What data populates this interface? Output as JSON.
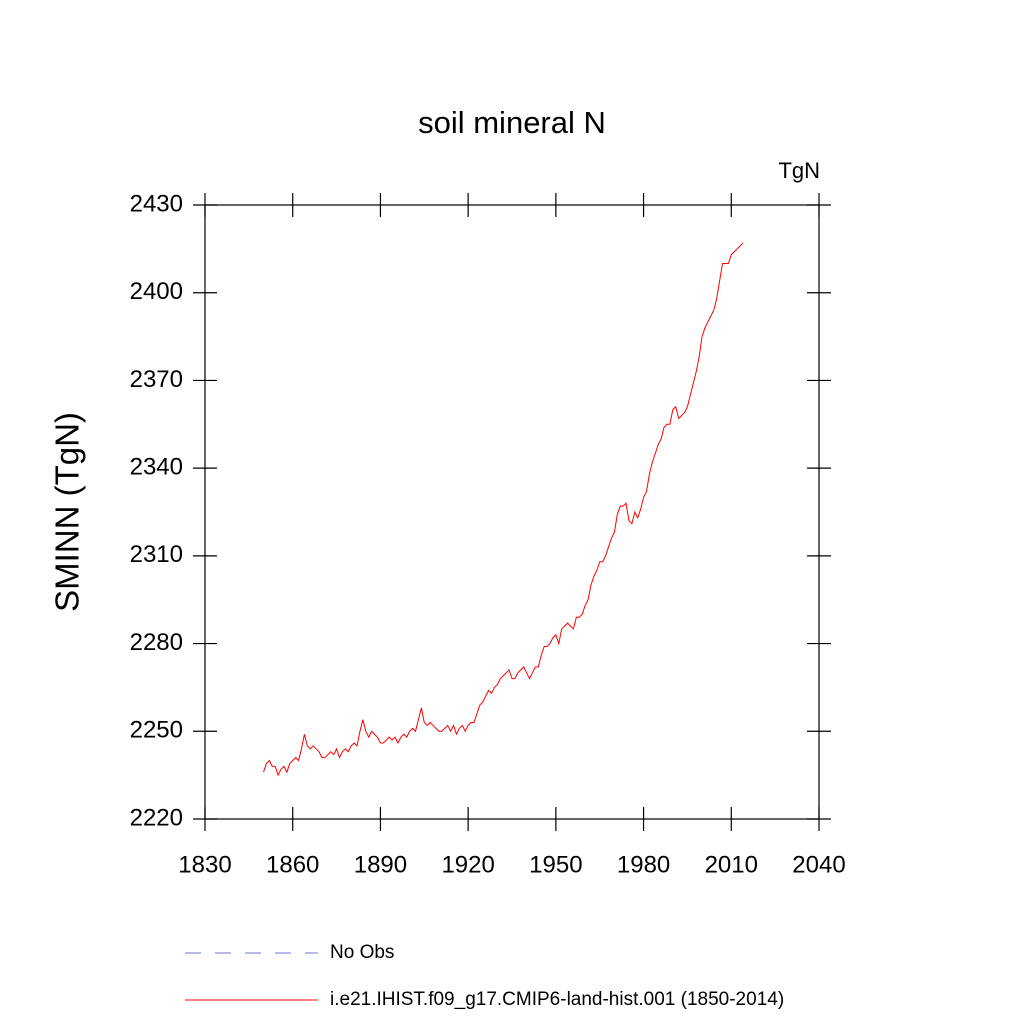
{
  "chart_data": {
    "type": "line",
    "title": "soil mineral N",
    "units": "TgN",
    "y_label": "SMINN  (TgN)",
    "xlim": [
      1830,
      2040
    ],
    "xticks": [
      1830,
      1860,
      1890,
      1920,
      1950,
      1980,
      2010,
      2040
    ],
    "ylim": [
      2220,
      2430
    ],
    "yticks": [
      2220,
      2250,
      2280,
      2310,
      2340,
      2370,
      2400,
      2430
    ],
    "reference_legend": {
      "name": "No Obs",
      "color": "#6f6fd0",
      "dash": true
    },
    "x": [
      1850,
      1851,
      1852,
      1853,
      1854,
      1855,
      1856,
      1857,
      1858,
      1859,
      1860,
      1861,
      1862,
      1863,
      1864,
      1865,
      1866,
      1867,
      1868,
      1869,
      1870,
      1871,
      1872,
      1873,
      1874,
      1875,
      1876,
      1877,
      1878,
      1879,
      1880,
      1881,
      1882,
      1883,
      1884,
      1885,
      1886,
      1887,
      1888,
      1889,
      1890,
      1891,
      1892,
      1893,
      1894,
      1895,
      1896,
      1897,
      1898,
      1899,
      1900,
      1901,
      1902,
      1903,
      1904,
      1905,
      1906,
      1907,
      1908,
      1909,
      1910,
      1911,
      1912,
      1913,
      1914,
      1915,
      1916,
      1917,
      1918,
      1919,
      1920,
      1921,
      1922,
      1923,
      1924,
      1925,
      1926,
      1927,
      1928,
      1929,
      1930,
      1931,
      1932,
      1933,
      1934,
      1935,
      1936,
      1937,
      1938,
      1939,
      1940,
      1941,
      1942,
      1943,
      1944,
      1945,
      1946,
      1947,
      1948,
      1949,
      1950,
      1951,
      1952,
      1953,
      1954,
      1955,
      1956,
      1957,
      1958,
      1959,
      1960,
      1961,
      1962,
      1963,
      1964,
      1965,
      1966,
      1967,
      1968,
      1969,
      1970,
      1971,
      1972,
      1973,
      1974,
      1975,
      1976,
      1977,
      1978,
      1979,
      1980,
      1981,
      1982,
      1983,
      1984,
      1985,
      1986,
      1987,
      1988,
      1989,
      1990,
      1991,
      1992,
      1993,
      1994,
      1995,
      1996,
      1997,
      1998,
      1999,
      2000,
      2001,
      2002,
      2003,
      2004,
      2005,
      2006,
      2007,
      2008,
      2009,
      2010,
      2011,
      2012,
      2013,
      2014
    ],
    "series": [
      {
        "name": "i.e21.IHIST.f09_g17.CMIP6-land-hist.001 (1850-2014)",
        "color": "#ff0000",
        "values": [
          2236,
          2239,
          2240,
          2238,
          2238,
          2235,
          2237,
          2238,
          2236,
          2239,
          2240,
          2241,
          2240,
          2244,
          2249,
          2245,
          2244,
          2245,
          2244,
          2243,
          2241,
          2241,
          2242,
          2243,
          2242,
          2244,
          2241,
          2243,
          2244,
          2243,
          2245,
          2246,
          2245,
          2250,
          2254,
          2250,
          2248,
          2250,
          2249,
          2248,
          2246,
          2246,
          2247,
          2248,
          2247,
          2248,
          2246,
          2248,
          2249,
          2248,
          2250,
          2251,
          2250,
          2254,
          2258,
          2253,
          2252,
          2253,
          2252,
          2251,
          2250,
          2250,
          2251,
          2252,
          2250,
          2252,
          2249,
          2251,
          2252,
          2250,
          2252,
          2253,
          2253,
          2256,
          2259,
          2260,
          2262,
          2264,
          2263,
          2265,
          2266,
          2268,
          2269,
          2270,
          2271,
          2268,
          2268,
          2270,
          2271,
          2272,
          2270,
          2268,
          2270,
          2272,
          2272,
          2276,
          2279,
          2279,
          2280,
          2282,
          2283,
          2280,
          2285,
          2286,
          2287,
          2286,
          2285,
          2289,
          2289,
          2290,
          2293,
          2295,
          2300,
          2303,
          2305,
          2308,
          2308,
          2310,
          2313,
          2316,
          2318,
          2324,
          2327,
          2327,
          2328,
          2322,
          2321,
          2325,
          2323,
          2326,
          2330,
          2332,
          2338,
          2342,
          2345,
          2348,
          2350,
          2354,
          2355,
          2355,
          2360,
          2361,
          2357,
          2358,
          2359,
          2361,
          2365,
          2369,
          2373,
          2378,
          2385,
          2388,
          2390,
          2392,
          2394,
          2398,
          2404,
          2410,
          2410,
          2410,
          2413,
          2414,
          2415,
          2416,
          2417
        ]
      }
    ]
  }
}
